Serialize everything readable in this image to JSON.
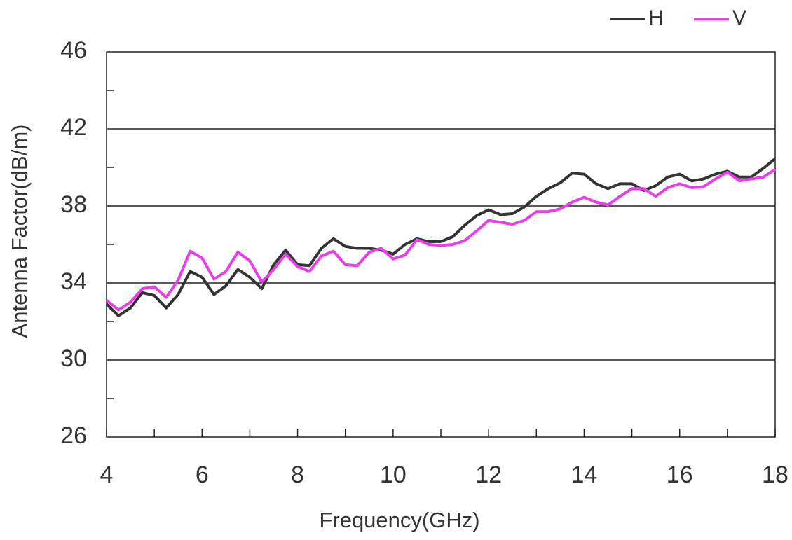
{
  "chart_data": {
    "type": "line",
    "x_label": "Frequency(GHz)",
    "y_label": "Antenna Factor(dB/m)",
    "x": [
      4,
      4.25,
      4.5,
      4.75,
      5,
      5.25,
      5.5,
      5.75,
      6,
      6.25,
      6.5,
      6.75,
      7,
      7.25,
      7.5,
      7.75,
      8,
      8.25,
      8.5,
      8.75,
      9,
      9.25,
      9.5,
      9.75,
      10,
      10.25,
      10.5,
      10.75,
      11,
      11.25,
      11.5,
      11.75,
      12,
      12.25,
      12.5,
      12.75,
      13,
      13.25,
      13.5,
      13.75,
      14,
      14.25,
      14.5,
      14.75,
      15,
      15.25,
      15.5,
      15.75,
      16,
      16.25,
      16.5,
      16.75,
      17,
      17.25,
      17.5,
      17.75,
      18
    ],
    "series": [
      {
        "name": "H",
        "color": "#333333",
        "values": [
          32.9,
          32.3,
          32.7,
          33.5,
          33.35,
          32.7,
          33.4,
          34.6,
          34.3,
          33.4,
          33.85,
          34.7,
          34.3,
          33.7,
          34.95,
          35.7,
          34.95,
          34.9,
          35.8,
          36.3,
          35.9,
          35.8,
          35.8,
          35.7,
          35.5,
          36.0,
          36.3,
          36.15,
          36.15,
          36.4,
          37.0,
          37.5,
          37.8,
          37.55,
          37.6,
          37.95,
          38.5,
          38.9,
          39.2,
          39.7,
          39.65,
          39.15,
          38.9,
          39.15,
          39.15,
          38.8,
          39.05,
          39.5,
          39.65,
          39.3,
          39.4,
          39.65,
          39.8,
          39.5,
          39.5,
          39.95,
          40.45
        ]
      },
      {
        "name": "V",
        "color": "#e83ee8",
        "values": [
          33.1,
          32.6,
          33.0,
          33.7,
          33.8,
          33.25,
          34.15,
          35.65,
          35.3,
          34.2,
          34.6,
          35.6,
          35.15,
          34.05,
          34.7,
          35.5,
          34.85,
          34.6,
          35.4,
          35.65,
          34.95,
          34.9,
          35.6,
          35.8,
          35.25,
          35.45,
          36.25,
          36.0,
          35.95,
          36.0,
          36.2,
          36.7,
          37.25,
          37.15,
          37.05,
          37.25,
          37.7,
          37.7,
          37.85,
          38.2,
          38.45,
          38.2,
          38.05,
          38.5,
          38.9,
          38.9,
          38.5,
          38.95,
          39.15,
          38.95,
          39.0,
          39.4,
          39.75,
          39.3,
          39.4,
          39.5,
          39.9
        ]
      }
    ],
    "xlim": [
      4,
      18
    ],
    "xticks": [
      4,
      6,
      8,
      10,
      12,
      14,
      16,
      18
    ],
    "xticks_minor": [
      5,
      7,
      9,
      11,
      13,
      15,
      17
    ],
    "ylim": [
      26,
      46
    ],
    "yticks": [
      26,
      30,
      34,
      38,
      42,
      46
    ],
    "yticks_minor": [
      28,
      32,
      36,
      40,
      44
    ],
    "grid": true,
    "legend": "top-right"
  }
}
